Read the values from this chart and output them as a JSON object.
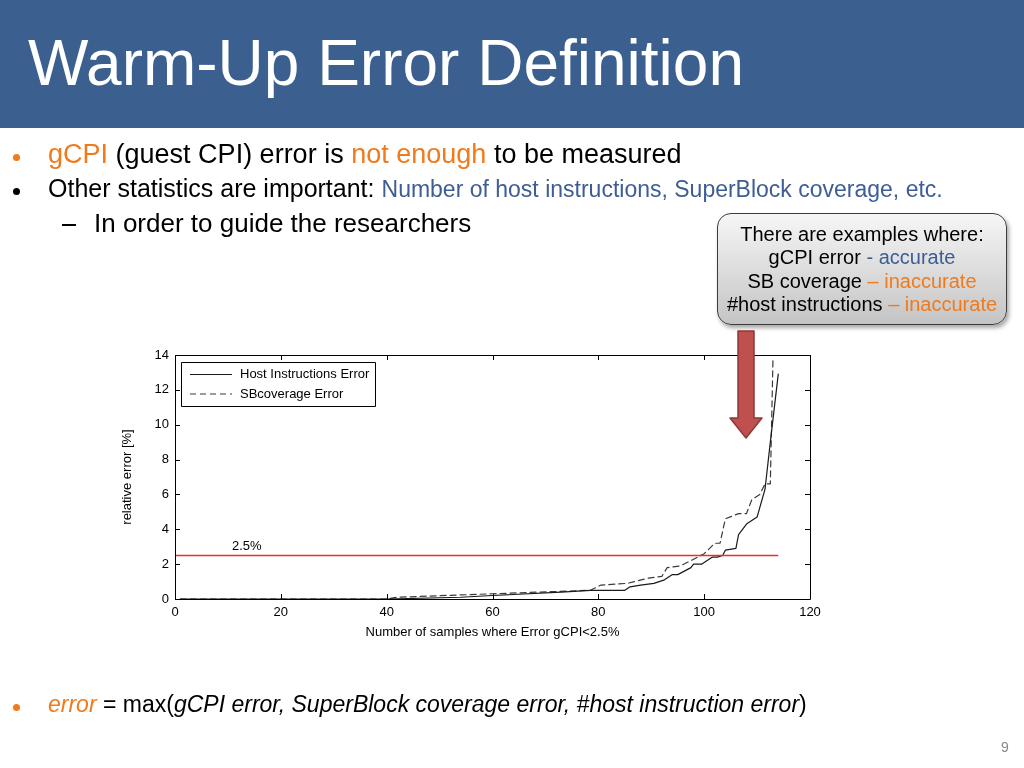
{
  "chart_data": {
    "type": "line",
    "title": "Warm-Up Error Definition",
    "xlabel": "Number of samples where Error gCPI<2.5%",
    "ylabel": "relative error [%]",
    "xlim": [
      0,
      120
    ],
    "xticks": [
      0,
      20,
      40,
      60,
      80,
      100,
      120
    ],
    "ylim": [
      0,
      14
    ],
    "yticks": [
      0,
      2,
      4,
      6,
      8,
      10,
      12,
      14
    ],
    "marker": "none",
    "legend": "top left",
    "series": [
      {
        "name": "Host Instructions Error",
        "color": "#1a1a1a",
        "line_style": "solid",
        "x": [
          1,
          40,
          54,
          60,
          73,
          78.5,
          85,
          86,
          88,
          90.5,
          92.5,
          94,
          95,
          97.5,
          98,
          99.5,
          101.5,
          102.5,
          103.5,
          104,
          106,
          106.5,
          108,
          110,
          111.5,
          112.5,
          114
        ],
        "values": [
          0,
          0,
          0.1,
          0.2,
          0.4,
          0.5,
          0.5,
          0.7,
          0.8,
          0.9,
          1.1,
          1.4,
          1.4,
          1.8,
          2,
          2,
          2.4,
          2.4,
          2.5,
          2.8,
          2.9,
          3.7,
          4.3,
          4.7,
          6.3,
          9,
          12.9
        ]
      },
      {
        "name": "SBcoverage Error",
        "color": "#3a3a3a",
        "line_style": "dashed",
        "x": [
          1,
          40,
          42,
          60,
          78.5,
          80.5,
          85.5,
          89.5,
          92,
          93,
          95.5,
          97.5,
          100,
          102,
          103,
          104,
          106.5,
          108,
          109,
          110.5,
          111.5,
          112.5,
          113
        ],
        "values": [
          0,
          0,
          0.1,
          0.3,
          0.5,
          0.8,
          0.9,
          1.2,
          1.3,
          1.8,
          1.9,
          2.2,
          2.6,
          3.2,
          3.2,
          4.6,
          4.9,
          4.9,
          5.7,
          6,
          6.6,
          6.6,
          13.7
        ]
      }
    ],
    "ref_lines": [
      {
        "axis": "y",
        "value": 2.5,
        "label": "2.5%",
        "color": "#ee2c2c"
      }
    ],
    "annotations": [
      "gCPI",
      "(guest CPI) error is",
      "not enough",
      "to be measured",
      "Other statistics are important:",
      "Number of host instructions, SuperBlock coverage, etc.",
      "In order to guide the researchers",
      "There are examples where:",
      "gCPI error",
      "- accurate",
      "SB coverage",
      "– inaccurate",
      "#host instructions",
      "– inaccurate",
      "error",
      "= max(",
      "gCPI error, SuperBlock coverage error, #host instruction error",
      ")",
      "9"
    ]
  }
}
